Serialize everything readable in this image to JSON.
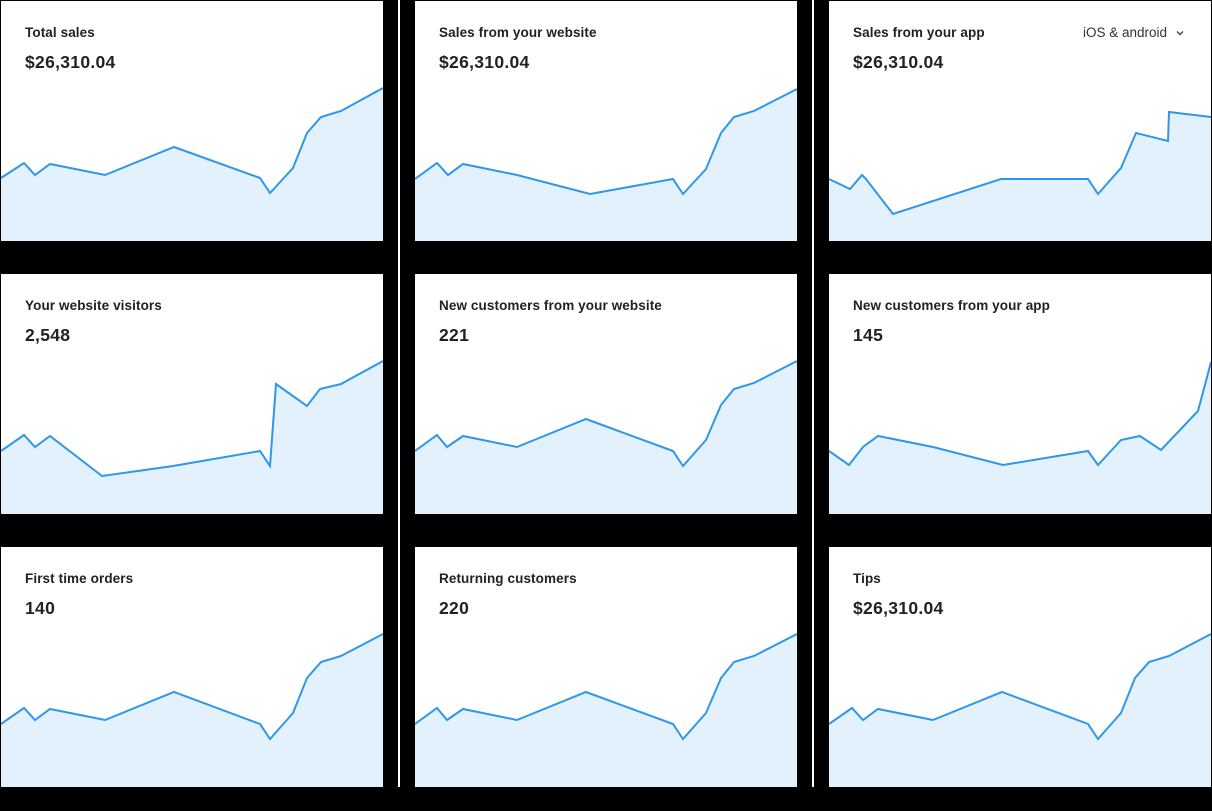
{
  "colors": {
    "background": "#000000",
    "card": "#ffffff",
    "line": "#2f97e9",
    "fill": "#e3f1fc",
    "text": "#222222"
  },
  "cards": [
    {
      "title": "Total sales",
      "value": "$26,310.04"
    },
    {
      "title": "Sales from your website",
      "value": "$26,310.04"
    },
    {
      "title": "Sales from your app",
      "value": "$26,310.04",
      "dropdown": {
        "selected": "iOS & android",
        "icon": "chevron-down-icon"
      }
    },
    {
      "title": "Your website visitors",
      "value": "2,548"
    },
    {
      "title": "New customers from your website",
      "value": "221"
    },
    {
      "title": "New customers from your app",
      "value": "145"
    },
    {
      "title": "First time orders",
      "value": "140"
    },
    {
      "title": "Returning customers",
      "value": "220"
    },
    {
      "title": "Tips",
      "value": "$26,310.04"
    }
  ],
  "chart_data": [
    {
      "type": "area",
      "title": "Total sales",
      "value_label": "$26,310.04",
      "grid": false,
      "axes": false,
      "points": [
        [
          0,
          177
        ],
        [
          23,
          162
        ],
        [
          34,
          174
        ],
        [
          49,
          163
        ],
        [
          104,
          174
        ],
        [
          173,
          146
        ],
        [
          259,
          177
        ],
        [
          269,
          192
        ],
        [
          292,
          167
        ],
        [
          306,
          132
        ],
        [
          320,
          116
        ],
        [
          340,
          110
        ],
        [
          382,
          87
        ]
      ]
    },
    {
      "type": "area",
      "title": "Sales from your website",
      "value_label": "$26,310.04",
      "grid": false,
      "axes": false,
      "points": [
        [
          0,
          178
        ],
        [
          22,
          162
        ],
        [
          33,
          174
        ],
        [
          48,
          163
        ],
        [
          102,
          174
        ],
        [
          175,
          193
        ],
        [
          258,
          178
        ],
        [
          268,
          193
        ],
        [
          291,
          168
        ],
        [
          306,
          132
        ],
        [
          319,
          116
        ],
        [
          339,
          110
        ],
        [
          382,
          88
        ]
      ]
    },
    {
      "type": "area",
      "title": "Sales from your app",
      "value_label": "$26,310.04",
      "grid": false,
      "axes": false,
      "points": [
        [
          0,
          178
        ],
        [
          21,
          188
        ],
        [
          33,
          174
        ],
        [
          37,
          178
        ],
        [
          64,
          213
        ],
        [
          172,
          178
        ],
        [
          259,
          178
        ],
        [
          269,
          193
        ],
        [
          292,
          167
        ],
        [
          307,
          132
        ],
        [
          339,
          140
        ],
        [
          340,
          111
        ],
        [
          382,
          116
        ]
      ]
    },
    {
      "type": "area",
      "title": "Your website visitors",
      "value_label": "2,548",
      "grid": false,
      "axes": false,
      "points": [
        [
          0,
          177
        ],
        [
          23,
          161
        ],
        [
          34,
          173
        ],
        [
          49,
          162
        ],
        [
          101,
          202
        ],
        [
          172,
          192
        ],
        [
          259,
          177
        ],
        [
          269,
          192
        ],
        [
          275,
          110
        ],
        [
          306,
          132
        ],
        [
          319,
          115
        ],
        [
          340,
          110
        ],
        [
          382,
          87
        ]
      ]
    },
    {
      "type": "area",
      "title": "New customers from your website",
      "value_label": "221",
      "grid": false,
      "axes": false,
      "points": [
        [
          0,
          177
        ],
        [
          22,
          161
        ],
        [
          32,
          173
        ],
        [
          48,
          162
        ],
        [
          102,
          173
        ],
        [
          171,
          145
        ],
        [
          258,
          177
        ],
        [
          268,
          192
        ],
        [
          291,
          166
        ],
        [
          306,
          131
        ],
        [
          319,
          115
        ],
        [
          339,
          109
        ],
        [
          382,
          87
        ]
      ]
    },
    {
      "type": "area",
      "title": "New customers from your app",
      "value_label": "145",
      "grid": false,
      "axes": false,
      "points": [
        [
          0,
          177
        ],
        [
          20,
          191
        ],
        [
          34,
          173
        ],
        [
          49,
          162
        ],
        [
          104,
          173
        ],
        [
          174,
          191
        ],
        [
          259,
          177
        ],
        [
          269,
          191
        ],
        [
          292,
          166
        ],
        [
          311,
          162
        ],
        [
          332,
          176
        ],
        [
          369,
          137
        ],
        [
          382,
          88
        ]
      ]
    },
    {
      "type": "area",
      "title": "First time orders",
      "value_label": "140",
      "grid": false,
      "axes": false,
      "points": [
        [
          0,
          177
        ],
        [
          23,
          161
        ],
        [
          34,
          173
        ],
        [
          49,
          162
        ],
        [
          104,
          173
        ],
        [
          173,
          145
        ],
        [
          259,
          177
        ],
        [
          269,
          192
        ],
        [
          292,
          166
        ],
        [
          306,
          131
        ],
        [
          320,
          115
        ],
        [
          340,
          109
        ],
        [
          382,
          87
        ]
      ]
    },
    {
      "type": "area",
      "title": "Returning customers",
      "value_label": "220",
      "grid": false,
      "axes": false,
      "points": [
        [
          0,
          177
        ],
        [
          22,
          161
        ],
        [
          32,
          173
        ],
        [
          48,
          162
        ],
        [
          102,
          173
        ],
        [
          171,
          145
        ],
        [
          258,
          177
        ],
        [
          268,
          192
        ],
        [
          291,
          166
        ],
        [
          306,
          131
        ],
        [
          319,
          115
        ],
        [
          339,
          109
        ],
        [
          382,
          87
        ]
      ]
    },
    {
      "type": "area",
      "title": "Tips",
      "value_label": "$26,310.04",
      "grid": false,
      "axes": false,
      "points": [
        [
          0,
          177
        ],
        [
          23,
          161
        ],
        [
          34,
          173
        ],
        [
          49,
          162
        ],
        [
          104,
          173
        ],
        [
          173,
          145
        ],
        [
          259,
          177
        ],
        [
          269,
          192
        ],
        [
          292,
          166
        ],
        [
          306,
          131
        ],
        [
          320,
          115
        ],
        [
          340,
          109
        ],
        [
          382,
          87
        ]
      ]
    }
  ]
}
